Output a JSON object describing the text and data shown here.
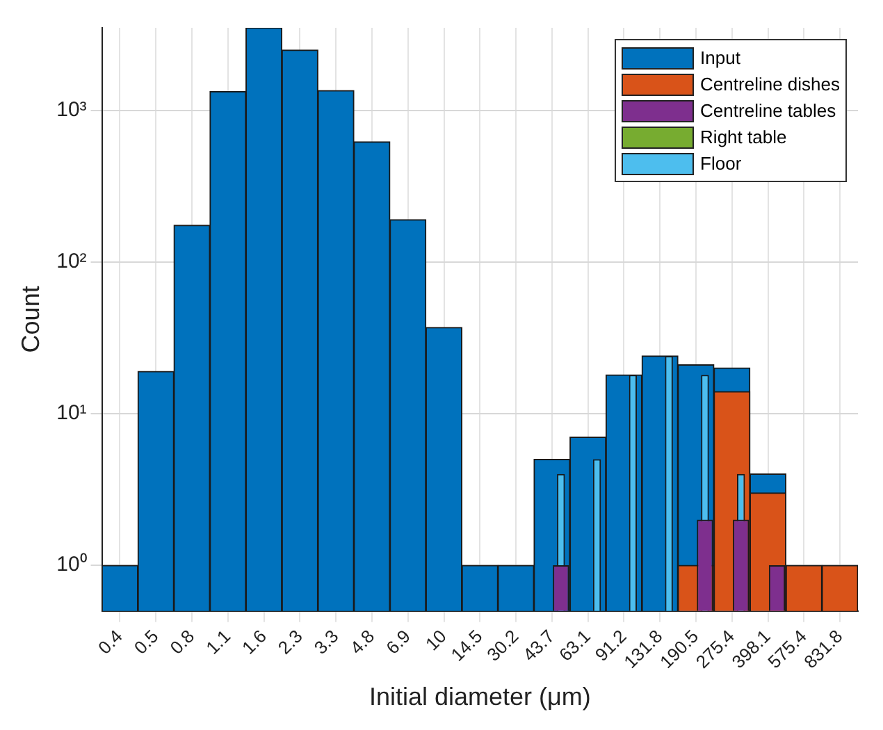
{
  "chart_data": {
    "type": "bar",
    "xlabel": "Initial diameter (μm)",
    "ylabel": "Count",
    "categories": [
      "0.4",
      "0.5",
      "0.8",
      "1.1",
      "1.6",
      "2.3",
      "3.3",
      "4.8",
      "6.9",
      "10",
      "14.5",
      "30.2",
      "43.7",
      "63.1",
      "91.2",
      "131.8",
      "190.5",
      "275.4",
      "398.1",
      "575.4",
      "831.8"
    ],
    "series": [
      {
        "name": "Input",
        "color": "#0072bd",
        "values": [
          1,
          19,
          175,
          1330,
          3500,
          2500,
          1350,
          620,
          190,
          37,
          1,
          1,
          5,
          7,
          18,
          24,
          21,
          20,
          4,
          null,
          null
        ]
      },
      {
        "name": "Centreline dishes",
        "color": "#d95319",
        "values": [
          null,
          null,
          null,
          null,
          null,
          null,
          null,
          null,
          null,
          null,
          null,
          null,
          null,
          null,
          null,
          null,
          1,
          14,
          3,
          1,
          1
        ]
      },
      {
        "name": "Centreline tables",
        "color": "#7e2f8e",
        "values": [
          null,
          null,
          null,
          null,
          null,
          null,
          null,
          null,
          null,
          null,
          null,
          null,
          1,
          null,
          null,
          null,
          2,
          2,
          1,
          null,
          null
        ]
      },
      {
        "name": "Right table",
        "color": "#77ac30",
        "values": [
          null,
          null,
          null,
          null,
          null,
          null,
          null,
          null,
          null,
          null,
          null,
          null,
          null,
          null,
          null,
          null,
          null,
          null,
          null,
          null,
          null
        ]
      },
      {
        "name": "Floor",
        "color": "#4dbeee",
        "values": [
          null,
          null,
          null,
          null,
          null,
          null,
          null,
          null,
          null,
          null,
          null,
          null,
          4,
          5,
          18,
          24,
          18,
          4,
          null,
          null,
          null
        ]
      }
    ],
    "log": "y",
    "ylim": [
      0.5,
      3500
    ],
    "yticks": [
      {
        "value": 1,
        "label": "10⁰"
      },
      {
        "value": 10,
        "label": "10¹"
      },
      {
        "value": 100,
        "label": "10²"
      },
      {
        "value": 1000,
        "label": "10³"
      }
    ],
    "grid": true,
    "legend": "top right"
  }
}
